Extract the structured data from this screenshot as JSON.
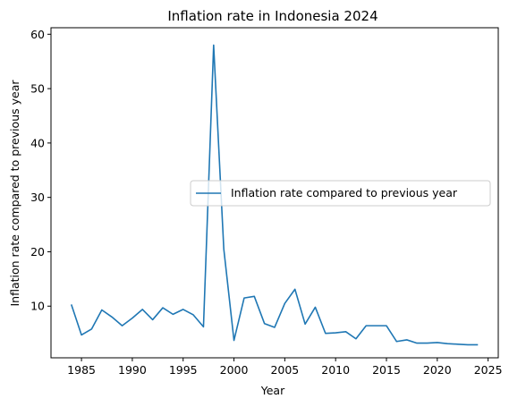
{
  "chart_data": {
    "type": "line",
    "title": "Inflation rate in Indonesia 2024",
    "xlabel": "Year",
    "ylabel": "Inflation rate compared to previous year",
    "xlim": [
      1982,
      2026
    ],
    "ylim": [
      0.5,
      61.2
    ],
    "xticks": [
      1985,
      1990,
      1995,
      2000,
      2005,
      2010,
      2015,
      2020,
      2025
    ],
    "yticks": [
      10,
      20,
      30,
      40,
      50,
      60
    ],
    "grid": false,
    "legend_position": "center-right",
    "series": [
      {
        "name": "Inflation rate compared to previous year",
        "color": "#1f77b4",
        "x": [
          1984,
          1985,
          1986,
          1987,
          1988,
          1989,
          1990,
          1991,
          1992,
          1993,
          1994,
          1995,
          1996,
          1997,
          1998,
          1999,
          2000,
          2001,
          2002,
          2003,
          2004,
          2005,
          2006,
          2007,
          2008,
          2009,
          2010,
          2011,
          2012,
          2013,
          2014,
          2015,
          2016,
          2017,
          2018,
          2019,
          2020,
          2021,
          2022,
          2023,
          2024
        ],
        "values": [
          10.3,
          4.7,
          5.8,
          9.3,
          8.0,
          6.4,
          7.8,
          9.4,
          7.5,
          9.7,
          8.5,
          9.4,
          8.4,
          6.2,
          58.0,
          20.5,
          3.7,
          11.5,
          11.8,
          6.8,
          6.1,
          10.5,
          13.1,
          6.7,
          9.8,
          5.0,
          5.1,
          5.3,
          4.0,
          6.4,
          6.4,
          6.4,
          3.5,
          3.8,
          3.2,
          3.2,
          3.3,
          3.1,
          3.0,
          2.9,
          2.9
        ]
      }
    ]
  }
}
